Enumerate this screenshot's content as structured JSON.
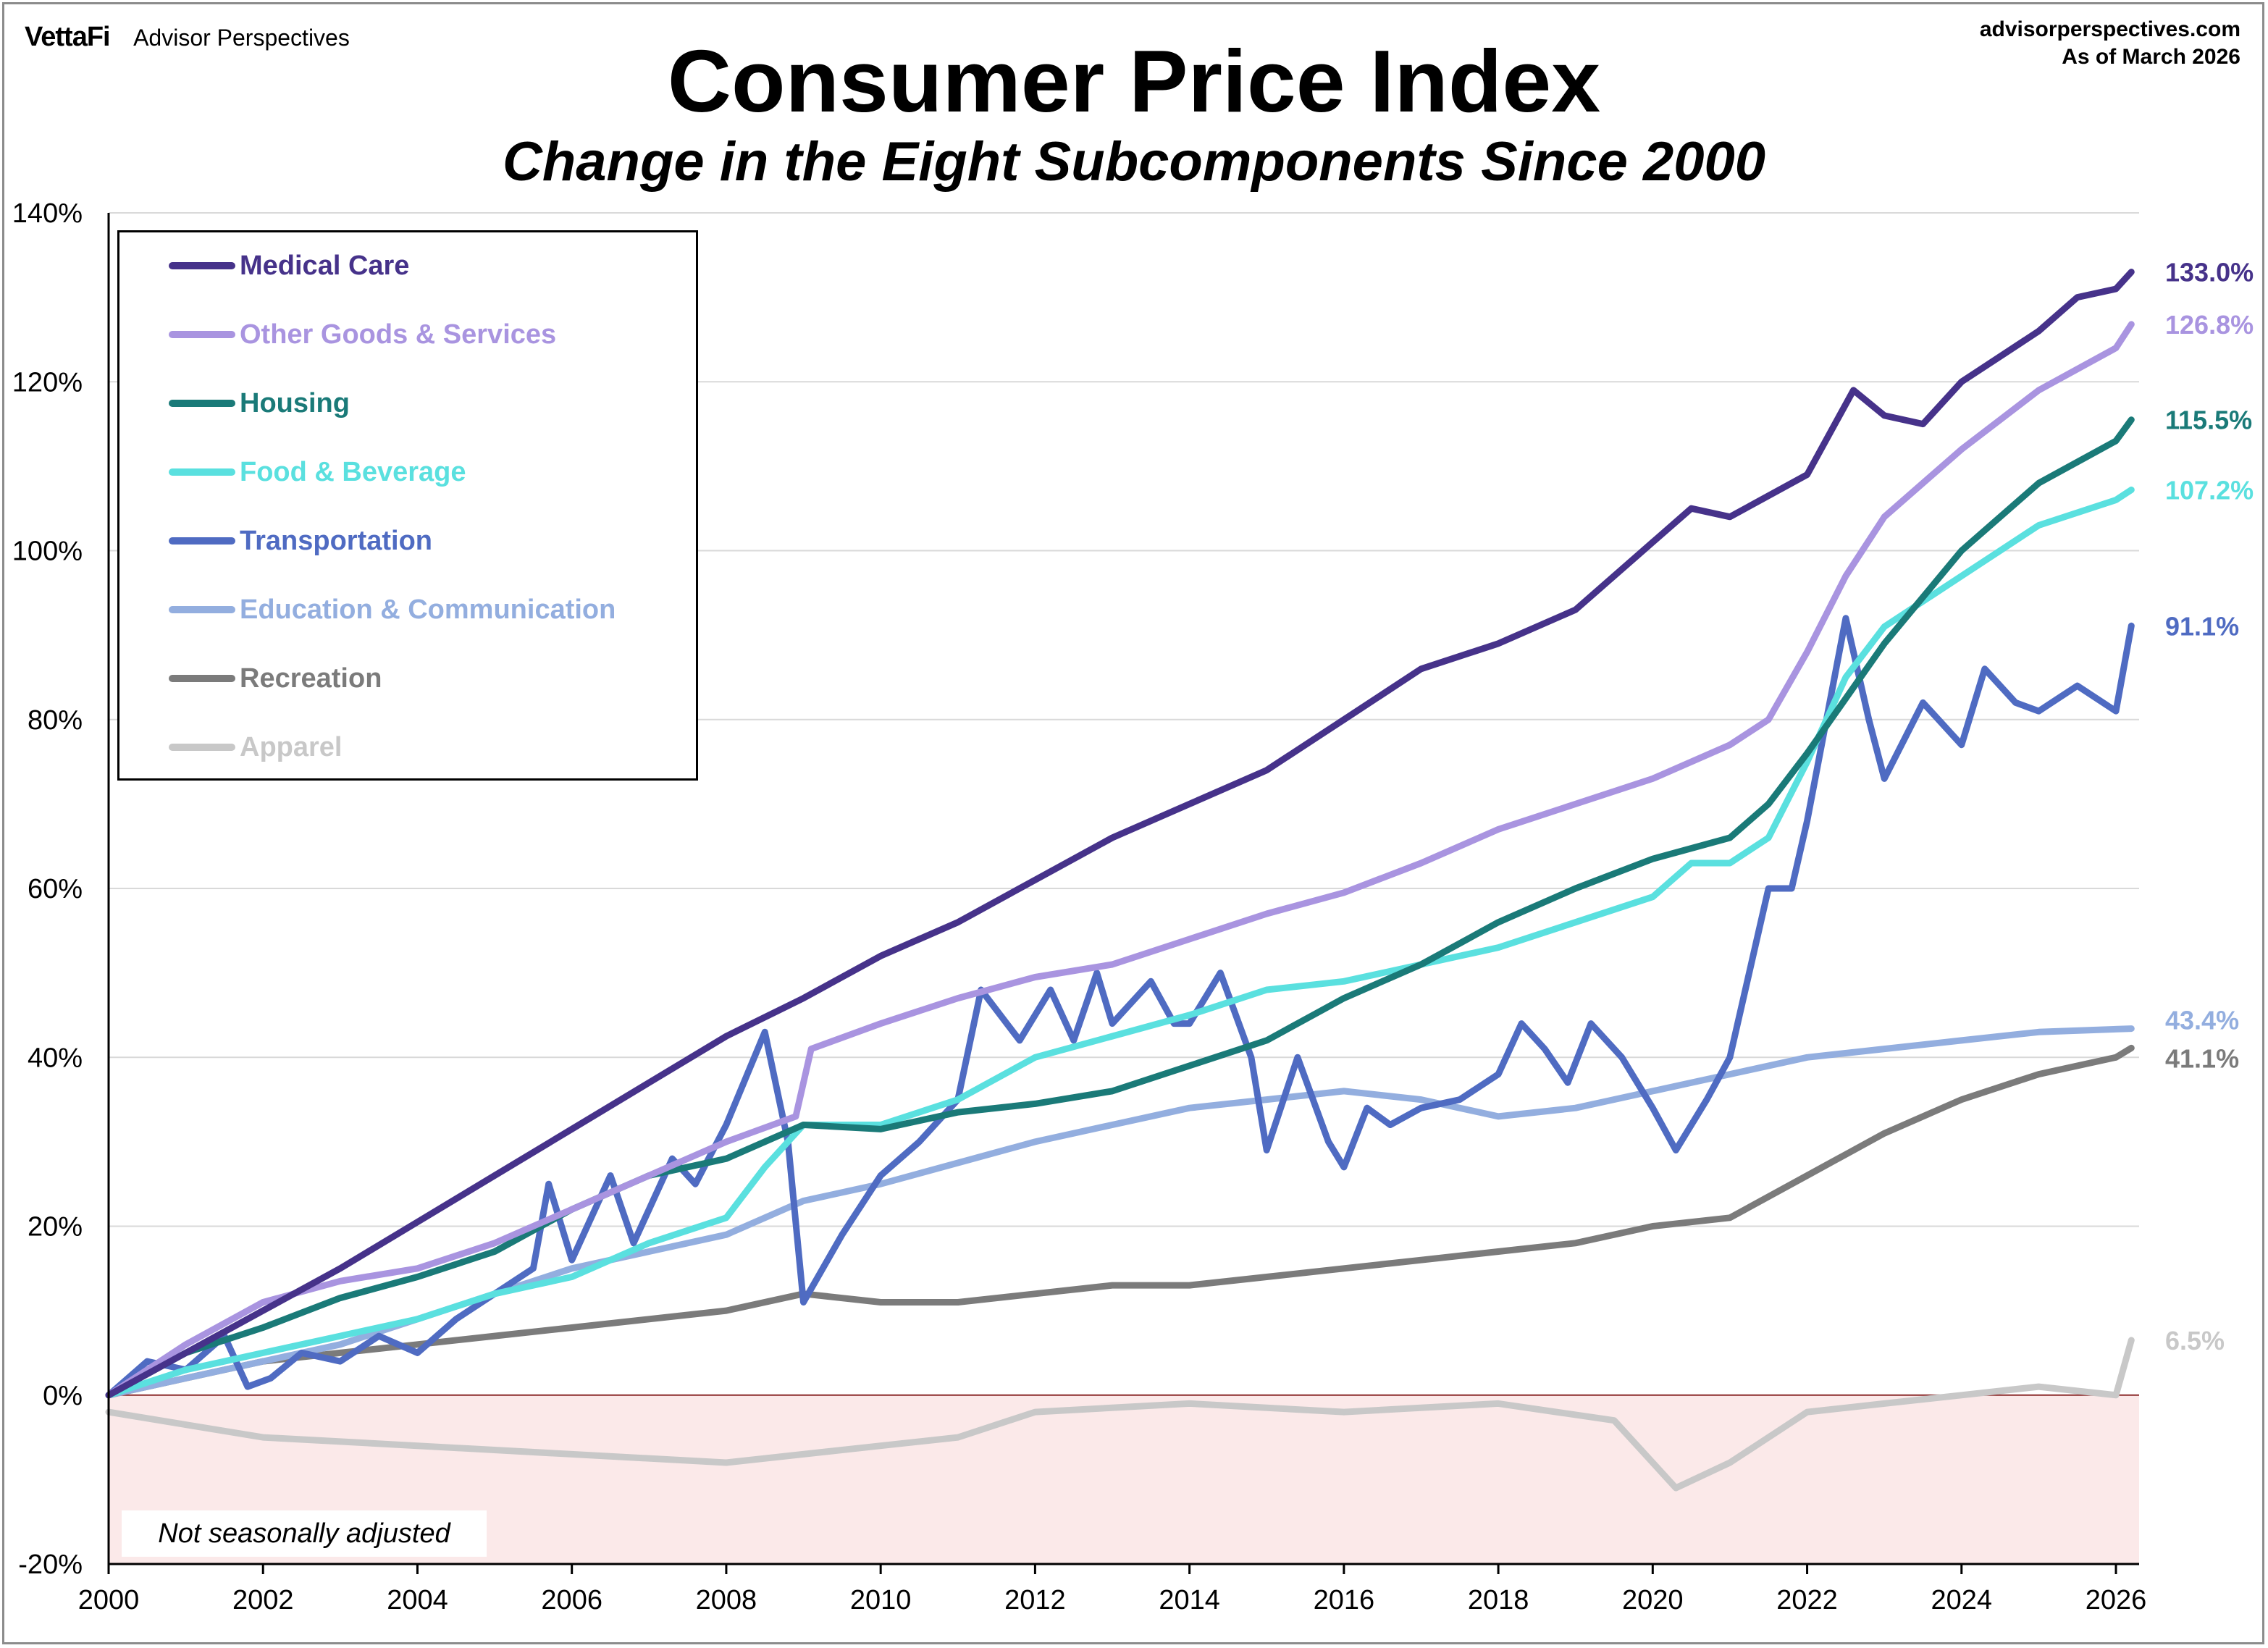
{
  "brand": {
    "logo": "VettaFi",
    "name": "Advisor Perspectives"
  },
  "source": {
    "site": "advisorperspectives.com",
    "asof": "As of March 2026"
  },
  "note": "Not seasonally adjusted",
  "colors": {
    "negative_band": "#fbe9e9",
    "zero_line": "#8b2a2a",
    "grid": "#d9d9d9"
  },
  "chart_data": {
    "type": "line",
    "title": "Consumer Price Index",
    "subtitle": "Change in the Eight Subcomponents Since 2000",
    "xlabel": "",
    "ylabel": "",
    "xlim": [
      2000,
      2026.3
    ],
    "ylim": [
      -20,
      140
    ],
    "x_ticks": [
      "2000",
      "2002",
      "2004",
      "2006",
      "2008",
      "2010",
      "2012",
      "2014",
      "2016",
      "2018",
      "2020",
      "2022",
      "2024",
      "2026"
    ],
    "y_ticks": [
      "-20%",
      "0%",
      "20%",
      "40%",
      "60%",
      "80%",
      "100%",
      "120%",
      "140%"
    ],
    "grid": "horizontal",
    "legend_position": "top-left",
    "series": [
      {
        "name": "Medical Care",
        "color": "#46328a",
        "end_label": "133.0%",
        "points": [
          [
            2000,
            0
          ],
          [
            2001,
            5
          ],
          [
            2002,
            10
          ],
          [
            2003,
            15
          ],
          [
            2004,
            20.5
          ],
          [
            2005,
            26
          ],
          [
            2006,
            31.5
          ],
          [
            2007,
            37
          ],
          [
            2008,
            42.5
          ],
          [
            2009,
            47
          ],
          [
            2010,
            52
          ],
          [
            2011,
            56
          ],
          [
            2012,
            61
          ],
          [
            2013,
            66
          ],
          [
            2014,
            70
          ],
          [
            2015,
            74
          ],
          [
            2016,
            80
          ],
          [
            2017,
            86
          ],
          [
            2018,
            89
          ],
          [
            2019,
            93
          ],
          [
            2020,
            101
          ],
          [
            2020.5,
            105
          ],
          [
            2021,
            104
          ],
          [
            2022,
            109
          ],
          [
            2022.6,
            119
          ],
          [
            2023,
            116
          ],
          [
            2023.5,
            115
          ],
          [
            2024,
            120
          ],
          [
            2025,
            126
          ],
          [
            2025.5,
            130
          ],
          [
            2026,
            131
          ],
          [
            2026.2,
            133
          ]
        ]
      },
      {
        "name": "Other Goods & Services",
        "color": "#a994e0",
        "end_label": "126.8%",
        "points": [
          [
            2000,
            0
          ],
          [
            2001,
            6
          ],
          [
            2002,
            11
          ],
          [
            2003,
            13.5
          ],
          [
            2004,
            15
          ],
          [
            2005,
            18
          ],
          [
            2006,
            22
          ],
          [
            2007,
            26
          ],
          [
            2008,
            30
          ],
          [
            2008.9,
            33
          ],
          [
            2009.1,
            41
          ],
          [
            2010,
            44
          ],
          [
            2011,
            47
          ],
          [
            2012,
            49.5
          ],
          [
            2013,
            51
          ],
          [
            2014,
            54
          ],
          [
            2015,
            57
          ],
          [
            2016,
            59.5
          ],
          [
            2017,
            63
          ],
          [
            2018,
            67
          ],
          [
            2019,
            70
          ],
          [
            2020,
            73
          ],
          [
            2021,
            77
          ],
          [
            2021.5,
            80
          ],
          [
            2022,
            88
          ],
          [
            2022.5,
            97
          ],
          [
            2023,
            104
          ],
          [
            2024,
            112
          ],
          [
            2025,
            119
          ],
          [
            2026,
            124
          ],
          [
            2026.2,
            126.8
          ]
        ]
      },
      {
        "name": "Housing",
        "color": "#1a7a78",
        "end_label": "115.5%",
        "points": [
          [
            2000,
            0
          ],
          [
            2001,
            5
          ],
          [
            2002,
            8
          ],
          [
            2003,
            11.5
          ],
          [
            2004,
            14
          ],
          [
            2005,
            17
          ],
          [
            2006,
            22
          ],
          [
            2007,
            26
          ],
          [
            2008,
            28
          ],
          [
            2009,
            32
          ],
          [
            2010,
            31.5
          ],
          [
            2011,
            33.5
          ],
          [
            2012,
            34.5
          ],
          [
            2013,
            36
          ],
          [
            2014,
            39
          ],
          [
            2015,
            42
          ],
          [
            2016,
            47
          ],
          [
            2017,
            51
          ],
          [
            2018,
            56
          ],
          [
            2019,
            60
          ],
          [
            2020,
            63.5
          ],
          [
            2021,
            66
          ],
          [
            2021.5,
            70
          ],
          [
            2022,
            76
          ],
          [
            2023,
            89
          ],
          [
            2024,
            100
          ],
          [
            2025,
            108
          ],
          [
            2026,
            113
          ],
          [
            2026.2,
            115.5
          ]
        ]
      },
      {
        "name": "Food & Beverage",
        "color": "#5ae0df",
        "end_label": "107.2%",
        "points": [
          [
            2000,
            0
          ],
          [
            2001,
            3
          ],
          [
            2002,
            5
          ],
          [
            2003,
            7
          ],
          [
            2004,
            9
          ],
          [
            2005,
            12
          ],
          [
            2006,
            14
          ],
          [
            2007,
            18
          ],
          [
            2008,
            21
          ],
          [
            2008.5,
            27
          ],
          [
            2009,
            32
          ],
          [
            2010,
            32
          ],
          [
            2011,
            35
          ],
          [
            2012,
            40
          ],
          [
            2013,
            42.5
          ],
          [
            2014,
            45
          ],
          [
            2015,
            48
          ],
          [
            2016,
            49
          ],
          [
            2017,
            51
          ],
          [
            2018,
            53
          ],
          [
            2019,
            56
          ],
          [
            2020,
            59
          ],
          [
            2020.5,
            63
          ],
          [
            2021,
            63
          ],
          [
            2021.5,
            66
          ],
          [
            2022,
            75
          ],
          [
            2022.5,
            85
          ],
          [
            2023,
            91
          ],
          [
            2024,
            97
          ],
          [
            2025,
            103
          ],
          [
            2026,
            106
          ],
          [
            2026.2,
            107.2
          ]
        ]
      },
      {
        "name": "Transportation",
        "color": "#4f6bc2",
        "end_label": "91.1%",
        "points": [
          [
            2000,
            0
          ],
          [
            2000.5,
            4
          ],
          [
            2001,
            3
          ],
          [
            2001.5,
            7
          ],
          [
            2001.8,
            1
          ],
          [
            2002.1,
            2
          ],
          [
            2002.5,
            5
          ],
          [
            2003,
            4
          ],
          [
            2003.5,
            7
          ],
          [
            2004,
            5
          ],
          [
            2004.5,
            9
          ],
          [
            2005,
            12
          ],
          [
            2005.5,
            15
          ],
          [
            2005.7,
            25
          ],
          [
            2006,
            16
          ],
          [
            2006.5,
            26
          ],
          [
            2006.8,
            18
          ],
          [
            2007,
            22
          ],
          [
            2007.3,
            28
          ],
          [
            2007.6,
            25
          ],
          [
            2008,
            32
          ],
          [
            2008.5,
            43
          ],
          [
            2008.8,
            30
          ],
          [
            2009,
            11
          ],
          [
            2009.5,
            19
          ],
          [
            2010,
            26
          ],
          [
            2010.5,
            30
          ],
          [
            2011,
            35
          ],
          [
            2011.3,
            48
          ],
          [
            2011.8,
            42
          ],
          [
            2012.2,
            48
          ],
          [
            2012.5,
            42
          ],
          [
            2012.8,
            50
          ],
          [
            2013,
            44
          ],
          [
            2013.5,
            49
          ],
          [
            2013.8,
            44
          ],
          [
            2014,
            44
          ],
          [
            2014.4,
            50
          ],
          [
            2014.8,
            40
          ],
          [
            2015,
            29
          ],
          [
            2015.4,
            40
          ],
          [
            2015.8,
            30
          ],
          [
            2016,
            27
          ],
          [
            2016.3,
            34
          ],
          [
            2016.6,
            32
          ],
          [
            2017,
            34
          ],
          [
            2017.5,
            35
          ],
          [
            2018,
            38
          ],
          [
            2018.3,
            44
          ],
          [
            2018.6,
            41
          ],
          [
            2018.9,
            37
          ],
          [
            2019.2,
            44
          ],
          [
            2019.6,
            40
          ],
          [
            2020,
            34
          ],
          [
            2020.3,
            29
          ],
          [
            2020.7,
            35
          ],
          [
            2021,
            40
          ],
          [
            2021.5,
            60
          ],
          [
            2021.8,
            60
          ],
          [
            2022,
            68
          ],
          [
            2022.5,
            92
          ],
          [
            2022.8,
            80
          ],
          [
            2023,
            73
          ],
          [
            2023.5,
            82
          ],
          [
            2024,
            77
          ],
          [
            2024.3,
            86
          ],
          [
            2024.7,
            82
          ],
          [
            2025,
            81
          ],
          [
            2025.5,
            84
          ],
          [
            2026,
            81
          ],
          [
            2026.2,
            91.1
          ]
        ]
      },
      {
        "name": "Education & Communication",
        "color": "#93aedf",
        "end_label": "43.4%",
        "points": [
          [
            2000,
            0
          ],
          [
            2001,
            2
          ],
          [
            2002,
            4
          ],
          [
            2003,
            6
          ],
          [
            2004,
            9
          ],
          [
            2005,
            12
          ],
          [
            2006,
            15
          ],
          [
            2007,
            17
          ],
          [
            2008,
            19
          ],
          [
            2009,
            23
          ],
          [
            2010,
            25
          ],
          [
            2011,
            27.5
          ],
          [
            2012,
            30
          ],
          [
            2013,
            32
          ],
          [
            2014,
            34
          ],
          [
            2015,
            35
          ],
          [
            2016,
            36
          ],
          [
            2017,
            35
          ],
          [
            2018,
            33
          ],
          [
            2019,
            34
          ],
          [
            2020,
            36
          ],
          [
            2021,
            38
          ],
          [
            2022,
            40
          ],
          [
            2023,
            41
          ],
          [
            2024,
            42
          ],
          [
            2025,
            43
          ],
          [
            2026.2,
            43.4
          ]
        ]
      },
      {
        "name": "Recreation",
        "color": "#7b7b7b",
        "end_label": "41.1%",
        "points": [
          [
            2000,
            0
          ],
          [
            2001,
            2
          ],
          [
            2002,
            4
          ],
          [
            2003,
            5
          ],
          [
            2004,
            6
          ],
          [
            2005,
            7
          ],
          [
            2006,
            8
          ],
          [
            2007,
            9
          ],
          [
            2008,
            10
          ],
          [
            2009,
            12
          ],
          [
            2010,
            11
          ],
          [
            2011,
            11
          ],
          [
            2012,
            12
          ],
          [
            2013,
            13
          ],
          [
            2014,
            13
          ],
          [
            2015,
            14
          ],
          [
            2016,
            15
          ],
          [
            2017,
            16
          ],
          [
            2018,
            17
          ],
          [
            2019,
            18
          ],
          [
            2020,
            20
          ],
          [
            2021,
            21
          ],
          [
            2022,
            26
          ],
          [
            2023,
            31
          ],
          [
            2024,
            35
          ],
          [
            2025,
            38
          ],
          [
            2026,
            40
          ],
          [
            2026.2,
            41.1
          ]
        ]
      },
      {
        "name": "Apparel",
        "color": "#c8c8c8",
        "end_label": "6.5%",
        "points": [
          [
            2000,
            -2
          ],
          [
            2002,
            -5
          ],
          [
            2004,
            -6
          ],
          [
            2006,
            -7
          ],
          [
            2008,
            -8
          ],
          [
            2010,
            -6
          ],
          [
            2011,
            -5
          ],
          [
            2012,
            -2
          ],
          [
            2014,
            -1
          ],
          [
            2016,
            -2
          ],
          [
            2018,
            -1
          ],
          [
            2019.5,
            -3
          ],
          [
            2020.3,
            -11
          ],
          [
            2021,
            -8
          ],
          [
            2022,
            -2
          ],
          [
            2023,
            -1
          ],
          [
            2024,
            0
          ],
          [
            2025,
            1
          ],
          [
            2026,
            0
          ],
          [
            2026.2,
            6.5
          ]
        ]
      }
    ]
  }
}
